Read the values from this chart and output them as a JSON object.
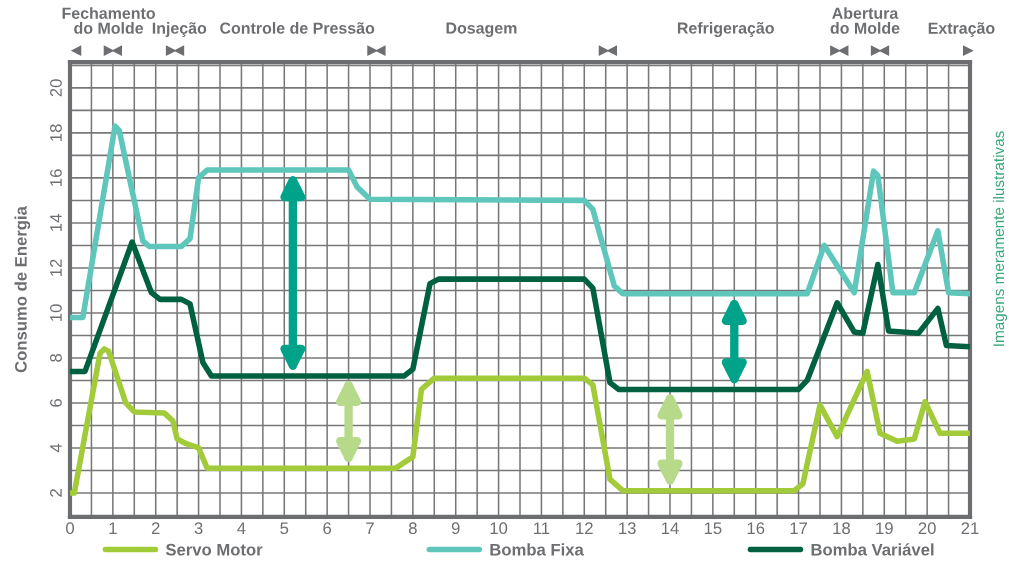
{
  "chart_data": {
    "type": "line",
    "ylabel": "Consumo de Energia",
    "xlim": [
      0,
      21
    ],
    "ylim": [
      0.93,
      21.15
    ],
    "xticks": [
      0,
      1,
      2,
      3,
      4,
      5,
      6,
      7,
      8,
      9,
      10,
      11,
      12,
      13,
      14,
      15,
      16,
      17,
      18,
      19,
      20,
      21,
      {
        "value": 0.5,
        "label": null
      },
      {
        "value": 1.5,
        "label": null
      },
      {
        "value": 2.5,
        "label": null
      },
      {
        "value": 3.5,
        "label": null
      },
      {
        "value": 4.5,
        "label": null
      },
      {
        "value": 5.5,
        "label": null
      },
      {
        "value": 6.5,
        "label": null
      },
      {
        "value": 7.5,
        "label": null
      },
      {
        "value": 8.5,
        "label": null
      },
      {
        "value": 9.5,
        "label": null
      },
      {
        "value": 10.5,
        "label": null
      },
      {
        "value": 11.5,
        "label": null
      },
      {
        "value": 12.5,
        "label": null
      },
      {
        "value": 13.5,
        "label": null
      },
      {
        "value": 14.5,
        "label": null
      },
      {
        "value": 15.5,
        "label": null
      },
      {
        "value": 16.5,
        "label": null
      },
      {
        "value": 17.5,
        "label": null
      },
      {
        "value": 18.5,
        "label": null
      },
      {
        "value": 19.5,
        "label": null
      },
      {
        "value": 20.5,
        "label": null
      }
    ],
    "yticks": [
      2,
      4,
      6,
      8,
      10,
      12,
      14,
      16,
      18,
      20,
      {
        "value": 1,
        "label": null
      },
      {
        "value": 3,
        "label": null
      },
      {
        "value": 5,
        "label": null
      },
      {
        "value": 7,
        "label": null
      },
      {
        "value": 9,
        "label": null
      },
      {
        "value": 11,
        "label": null
      },
      {
        "value": 13,
        "label": null
      },
      {
        "value": 15,
        "label": null
      },
      {
        "value": 17,
        "label": null
      },
      {
        "value": 19,
        "label": null
      },
      {
        "value": 21,
        "label": null
      }
    ],
    "grid": true,
    "legend": "bottom",
    "marker": "none",
    "line_style": "solid",
    "annotations": [
      "Fechamento\ndo Molde",
      "Injeção",
      "Controle de Pressão",
      "Dosagem",
      "Refrigeração",
      "Abertura\ndo Molde",
      "Extração",
      "Imagens meramente ilustrativas"
    ],
    "series": [
      {
        "name": "Servo Motor",
        "color": "#a2cb3a",
        "x": [
          0,
          0.1,
          0.7,
          0.8,
          0.9,
          1.3,
          1.5,
          2.2,
          2.4,
          2.5,
          2.7,
          3.0,
          3.2,
          7.6,
          8.0,
          8.2,
          8.5,
          12.0,
          12.2,
          12.6,
          12.9,
          16.9,
          17.1,
          17.5,
          17.9,
          18.6,
          18.9,
          19.3,
          19.7,
          19.95,
          20.3,
          21
        ],
        "values": [
          2.0,
          2.0,
          8.2,
          8.4,
          8.3,
          6.0,
          5.6,
          5.55,
          5.2,
          4.4,
          4.2,
          4.0,
          3.1,
          3.1,
          3.6,
          6.6,
          7.1,
          7.1,
          6.8,
          2.6,
          2.1,
          2.1,
          2.4,
          5.9,
          4.5,
          7.4,
          4.65,
          4.3,
          4.4,
          6.05,
          4.65,
          4.65
        ]
      },
      {
        "name": "Bomba Fixa",
        "color": "#5ec6bb",
        "x": [
          0,
          0.3,
          1.05,
          1.15,
          1.7,
          1.85,
          2.6,
          2.8,
          3.0,
          3.2,
          6.5,
          6.7,
          7.0,
          12.0,
          12.2,
          12.7,
          12.9,
          17.2,
          17.6,
          18.3,
          18.75,
          18.85,
          19.2,
          19.7,
          20.25,
          20.5,
          21
        ],
        "values": [
          9.8,
          9.8,
          18.3,
          18.1,
          13.2,
          12.95,
          12.95,
          13.3,
          16.0,
          16.35,
          16.35,
          15.6,
          15.05,
          15.0,
          14.6,
          11.2,
          10.85,
          10.85,
          13.0,
          10.9,
          16.3,
          16.1,
          10.9,
          10.9,
          13.65,
          10.9,
          10.85
        ]
      },
      {
        "name": "Bomba Variável",
        "color": "#006140",
        "x": [
          0,
          0.35,
          1.45,
          1.9,
          2.1,
          2.6,
          2.8,
          3.1,
          3.3,
          7.8,
          8.0,
          8.4,
          8.6,
          12.0,
          12.2,
          12.6,
          12.8,
          17.0,
          17.2,
          17.9,
          18.3,
          18.5,
          18.85,
          19.1,
          19.8,
          20.25,
          20.45,
          21
        ],
        "values": [
          7.4,
          7.4,
          13.15,
          10.9,
          10.6,
          10.6,
          10.4,
          7.8,
          7.2,
          7.2,
          7.5,
          11.3,
          11.5,
          11.5,
          11.1,
          6.9,
          6.6,
          6.6,
          7.0,
          10.45,
          9.15,
          9.1,
          12.15,
          9.2,
          9.1,
          10.2,
          8.55,
          8.5
        ]
      }
    ]
  }
}
